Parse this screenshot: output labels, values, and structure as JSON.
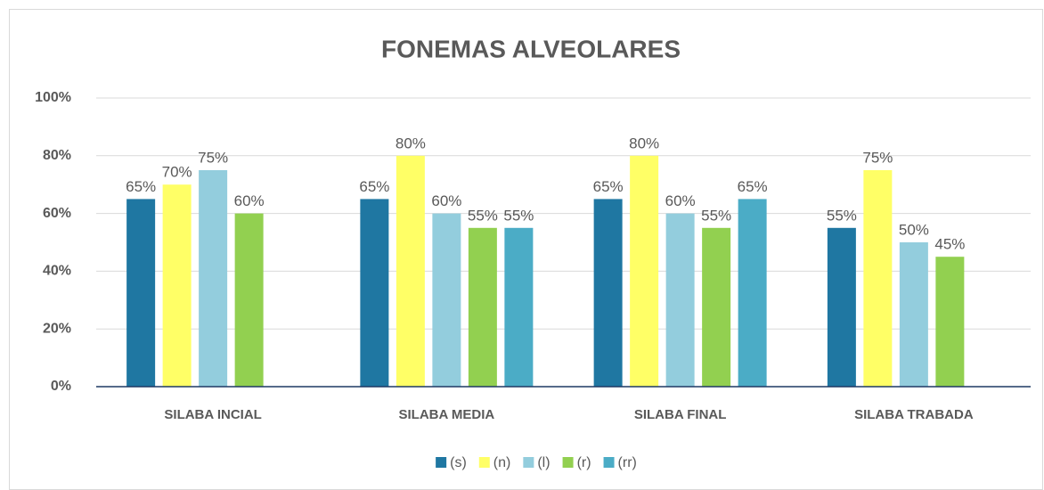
{
  "chart_data": {
    "type": "bar",
    "title": "FONEMAS ALVEOLARES",
    "categories": [
      "SILABA INCIAL",
      "SILABA MEDIA",
      "SILABA FINAL",
      "SILABA TRABADA"
    ],
    "series": [
      {
        "name": "(s)",
        "color": "#1f77a2",
        "values": [
          65,
          65,
          65,
          55
        ],
        "value_labels": [
          "65%",
          "65%",
          "65%",
          "55%"
        ]
      },
      {
        "name": "(n)",
        "color": "#ffff66",
        "values": [
          70,
          80,
          80,
          75
        ],
        "value_labels": [
          "70%",
          "80%",
          "80%",
          "75%"
        ]
      },
      {
        "name": "(l)",
        "color": "#93cddd",
        "values": [
          75,
          60,
          60,
          50
        ],
        "value_labels": [
          "75%",
          "60%",
          "60%",
          "50%"
        ]
      },
      {
        "name": "(r)",
        "color": "#92d050",
        "values": [
          60,
          55,
          55,
          45
        ],
        "value_labels": [
          "60%",
          "55%",
          "55%",
          "45%"
        ]
      },
      {
        "name": "(rr)",
        "color": "#4bacc6",
        "values": [
          null,
          55,
          65,
          null
        ],
        "value_labels": [
          null,
          "55%",
          "65%",
          null
        ]
      }
    ],
    "ylim": [
      0,
      100
    ],
    "yticks": [
      {
        "value": 0,
        "label": "0%"
      },
      {
        "value": 20,
        "label": "20%"
      },
      {
        "value": 40,
        "label": "40%"
      },
      {
        "value": 60,
        "label": "60%"
      },
      {
        "value": 80,
        "label": "80%"
      },
      {
        "value": 100,
        "label": "100%"
      }
    ],
    "grid": true,
    "legend": "bottom"
  }
}
